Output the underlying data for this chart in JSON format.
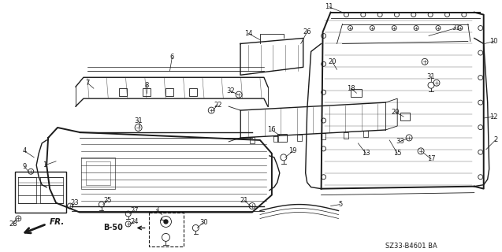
{
  "background_color": "#ffffff",
  "line_color": "#1a1a1a",
  "diagram_code": "SZ33-B4601 BA",
  "figsize": [
    6.37,
    3.2
  ],
  "dpi": 100
}
